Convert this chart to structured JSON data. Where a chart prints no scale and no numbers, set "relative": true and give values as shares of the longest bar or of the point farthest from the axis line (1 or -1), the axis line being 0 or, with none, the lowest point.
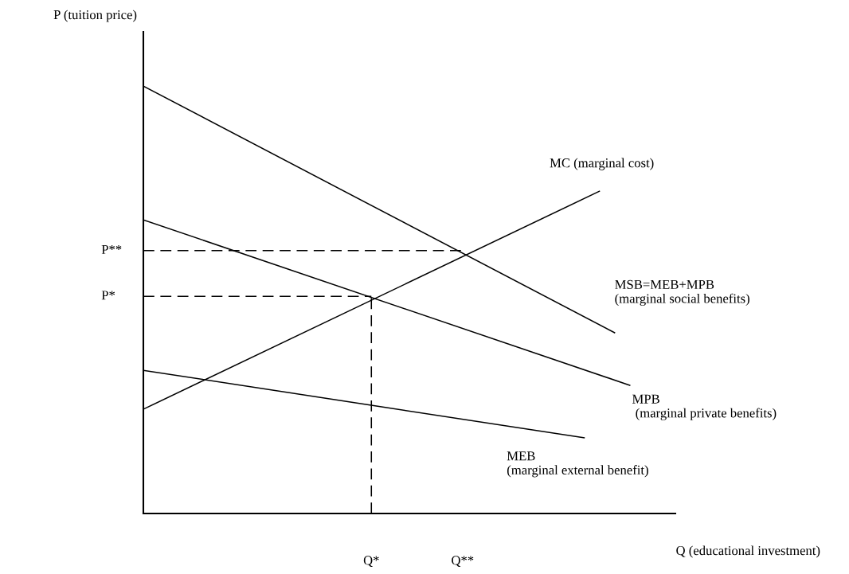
{
  "chart_data": {
    "type": "line",
    "relative": true,
    "xlabel": "Q (educational investment)",
    "ylabel": "P (tuition price)",
    "categories": [
      null,
      null,
      null,
      null,
      null,
      null,
      null,
      null,
      null,
      null,
      null,
      null,
      null,
      null,
      null,
      "Q*",
      null,
      null,
      null,
      null,
      null,
      "Q**",
      null,
      null,
      null,
      null,
      null,
      null,
      null,
      null,
      null,
      null,
      null,
      null,
      null,
      null
    ],
    "series": [
      {
        "name": "MSB=MEB+MPB\n(marginal social benefits)",
        "color": "#000000",
        "values": [
          1.0,
          null,
          null,
          null,
          null,
          null,
          null,
          null,
          null,
          null,
          null,
          null,
          null,
          null,
          null,
          null,
          null,
          null,
          null,
          null,
          null,
          null,
          null,
          null,
          null,
          null,
          null,
          null,
          null,
          null,
          null,
          0.423,
          null,
          null,
          null,
          null
        ]
      },
      {
        "name": "MC (marginal cost)",
        "color": "#000000",
        "values": [
          0.244,
          null,
          null,
          null,
          null,
          null,
          null,
          null,
          null,
          null,
          null,
          null,
          null,
          null,
          null,
          null,
          null,
          null,
          null,
          null,
          null,
          null,
          null,
          null,
          null,
          null,
          null,
          null,
          null,
          null,
          0.754,
          null,
          null,
          null,
          null,
          null
        ]
      },
      {
        "name": "MPB\n (marginal private benefits)",
        "color": "#000000",
        "values": [
          0.687,
          null,
          null,
          null,
          null,
          null,
          null,
          null,
          null,
          null,
          null,
          null,
          null,
          null,
          null,
          null,
          null,
          null,
          null,
          null,
          null,
          null,
          null,
          null,
          null,
          null,
          null,
          null,
          null,
          null,
          null,
          null,
          0.3,
          null,
          null,
          null
        ]
      },
      {
        "name": "MEB\n(marginal external benefit)",
        "color": "#000000",
        "values": [
          0.335,
          null,
          null,
          null,
          null,
          null,
          null,
          null,
          null,
          null,
          null,
          null,
          null,
          null,
          null,
          null,
          null,
          null,
          null,
          null,
          null,
          null,
          null,
          null,
          null,
          null,
          null,
          null,
          null,
          0.177,
          null,
          null,
          null,
          null,
          null,
          null
        ]
      },
      {
        "name": "P**",
        "color": "#000000",
        "line_style": "dashed",
        "values": [
          0.615,
          null,
          null,
          null,
          null,
          null,
          null,
          null,
          null,
          null,
          null,
          null,
          null,
          null,
          null,
          null,
          null,
          null,
          null,
          null,
          null,
          0.615,
          null,
          null,
          null,
          null,
          null,
          null,
          null,
          null,
          null,
          null,
          null,
          null,
          null,
          null
        ]
      },
      {
        "name": "P*",
        "color": "#000000",
        "line_style": "dashed",
        "values": [
          0.508,
          null,
          null,
          null,
          null,
          null,
          null,
          null,
          null,
          null,
          null,
          null,
          null,
          null,
          null,
          0.508,
          null,
          null,
          null,
          null,
          null,
          null,
          null,
          null,
          null,
          null,
          null,
          null,
          null,
          null,
          null,
          null,
          null,
          null,
          null,
          null
        ]
      }
    ],
    "ref_lines": [
      {
        "axis": "x",
        "value": "Q*",
        "color": "#000000",
        "line_style": "dashed"
      }
    ]
  }
}
